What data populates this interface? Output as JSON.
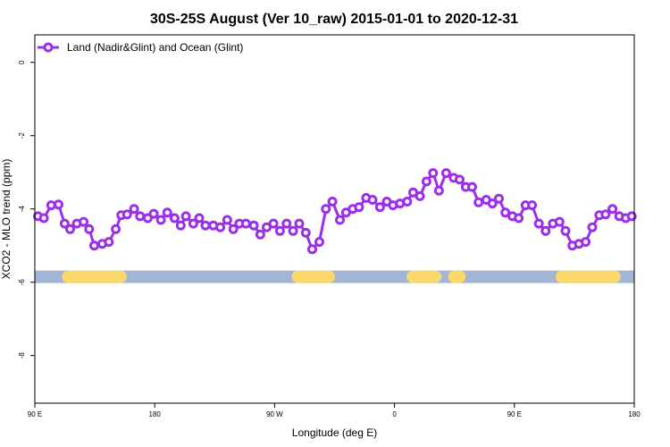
{
  "chart_data": {
    "type": "line",
    "title": "30S-25S August (Ver 10_raw)   2015-01-01 to 2020-12-31",
    "xlabel": "Longitude (deg E)",
    "ylabel": "XCO2 - MLO trend (ppm)",
    "xlim": [
      90,
      450
    ],
    "ylim": [
      -9.3,
      0.75
    ],
    "x_ticks": [
      {
        "value": 90,
        "label": "90 E"
      },
      {
        "value": 162,
        "label": "180"
      },
      {
        "value": 234,
        "label": "90 W"
      },
      {
        "value": 306,
        "label": "0"
      },
      {
        "value": 378,
        "label": "90 E"
      },
      {
        "value": 450,
        "label": "180"
      }
    ],
    "y_ticks": [
      0,
      -2,
      -4,
      -6,
      -8
    ],
    "legend": {
      "position": "top-left",
      "entries": [
        "Land (Nadir&Glint) and Ocean (Glint)"
      ]
    },
    "grid": false,
    "colors": {
      "series": "#9B30E6",
      "ocean": "#A2B5D4",
      "land": "#FAD86C"
    },
    "series": [
      {
        "name": "Land (Nadir&Glint) and Ocean (Glint)",
        "x": [
          91.9,
          95.4,
          99.8,
          104.2,
          107.9,
          111.2,
          115.2,
          119.3,
          122.6,
          125.7,
          130.5,
          134.5,
          138.6,
          141.9,
          145.4,
          149.6,
          153.2,
          157.8,
          161.4,
          165.7,
          169.5,
          173.9,
          177.6,
          180.7,
          185.2,
          188.7,
          192.5,
          197.2,
          201.4,
          205.5,
          209.2,
          212.8,
          216.8,
          221.5,
          225.4,
          229.2,
          233.3,
          237.2,
          241.2,
          245.1,
          248.8,
          252.7,
          256.6,
          260.9,
          264.8,
          268.7,
          273.2,
          276.9,
          280.9,
          284.7,
          289.0,
          292.8,
          297.3,
          301.4,
          305.1,
          309.3,
          313.6,
          317.2,
          321.3,
          325.2,
          329.2,
          332.7,
          337.0,
          341.5,
          345.1,
          348.8,
          352.6,
          356.5,
          361.1,
          364.8,
          368.7,
          372.6,
          376.8,
          380.6,
          384.7,
          388.6,
          392.7,
          396.8,
          401.1,
          405.1,
          408.7,
          412.8,
          416.8,
          420.8,
          424.8,
          429.0,
          432.8,
          436.9,
          441.0,
          444.9,
          448.5
        ],
        "y": [
          -4.2,
          -4.25,
          -3.9,
          -3.88,
          -4.4,
          -4.55,
          -4.4,
          -4.35,
          -4.55,
          -5.0,
          -4.95,
          -4.9,
          -4.55,
          -4.17,
          -4.15,
          -4.0,
          -4.2,
          -4.25,
          -4.13,
          -4.3,
          -4.1,
          -4.25,
          -4.45,
          -4.2,
          -4.4,
          -4.25,
          -4.45,
          -4.45,
          -4.5,
          -4.3,
          -4.55,
          -4.4,
          -4.4,
          -4.45,
          -4.7,
          -4.5,
          -4.4,
          -4.6,
          -4.4,
          -4.6,
          -4.4,
          -4.65,
          -5.1,
          -4.9,
          -4.0,
          -3.8,
          -4.3,
          -4.1,
          -4.0,
          -3.95,
          -3.7,
          -3.75,
          -3.95,
          -3.8,
          -3.9,
          -3.85,
          -3.8,
          -3.55,
          -3.65,
          -3.25,
          -3.02,
          -3.5,
          -3.02,
          -3.15,
          -3.2,
          -3.4,
          -3.4,
          -3.82,
          -3.75,
          -3.85,
          -3.72,
          -4.1,
          -4.2,
          -4.25,
          -3.9,
          -3.9,
          -4.4,
          -4.6,
          -4.4,
          -4.35,
          -4.6,
          -5.0,
          -4.95,
          -4.9,
          -4.5,
          -4.17,
          -4.15,
          -4.0,
          -4.2,
          -4.25,
          -4.2
        ]
      }
    ],
    "surface_band": {
      "y": -5.85,
      "land_segments_x": [
        [
          110.0,
          141.5
        ],
        [
          248.0,
          266.5
        ],
        [
          317.0,
          330.5
        ],
        [
          342.0,
          345.0
        ],
        [
          406.5,
          438.0
        ]
      ]
    }
  }
}
